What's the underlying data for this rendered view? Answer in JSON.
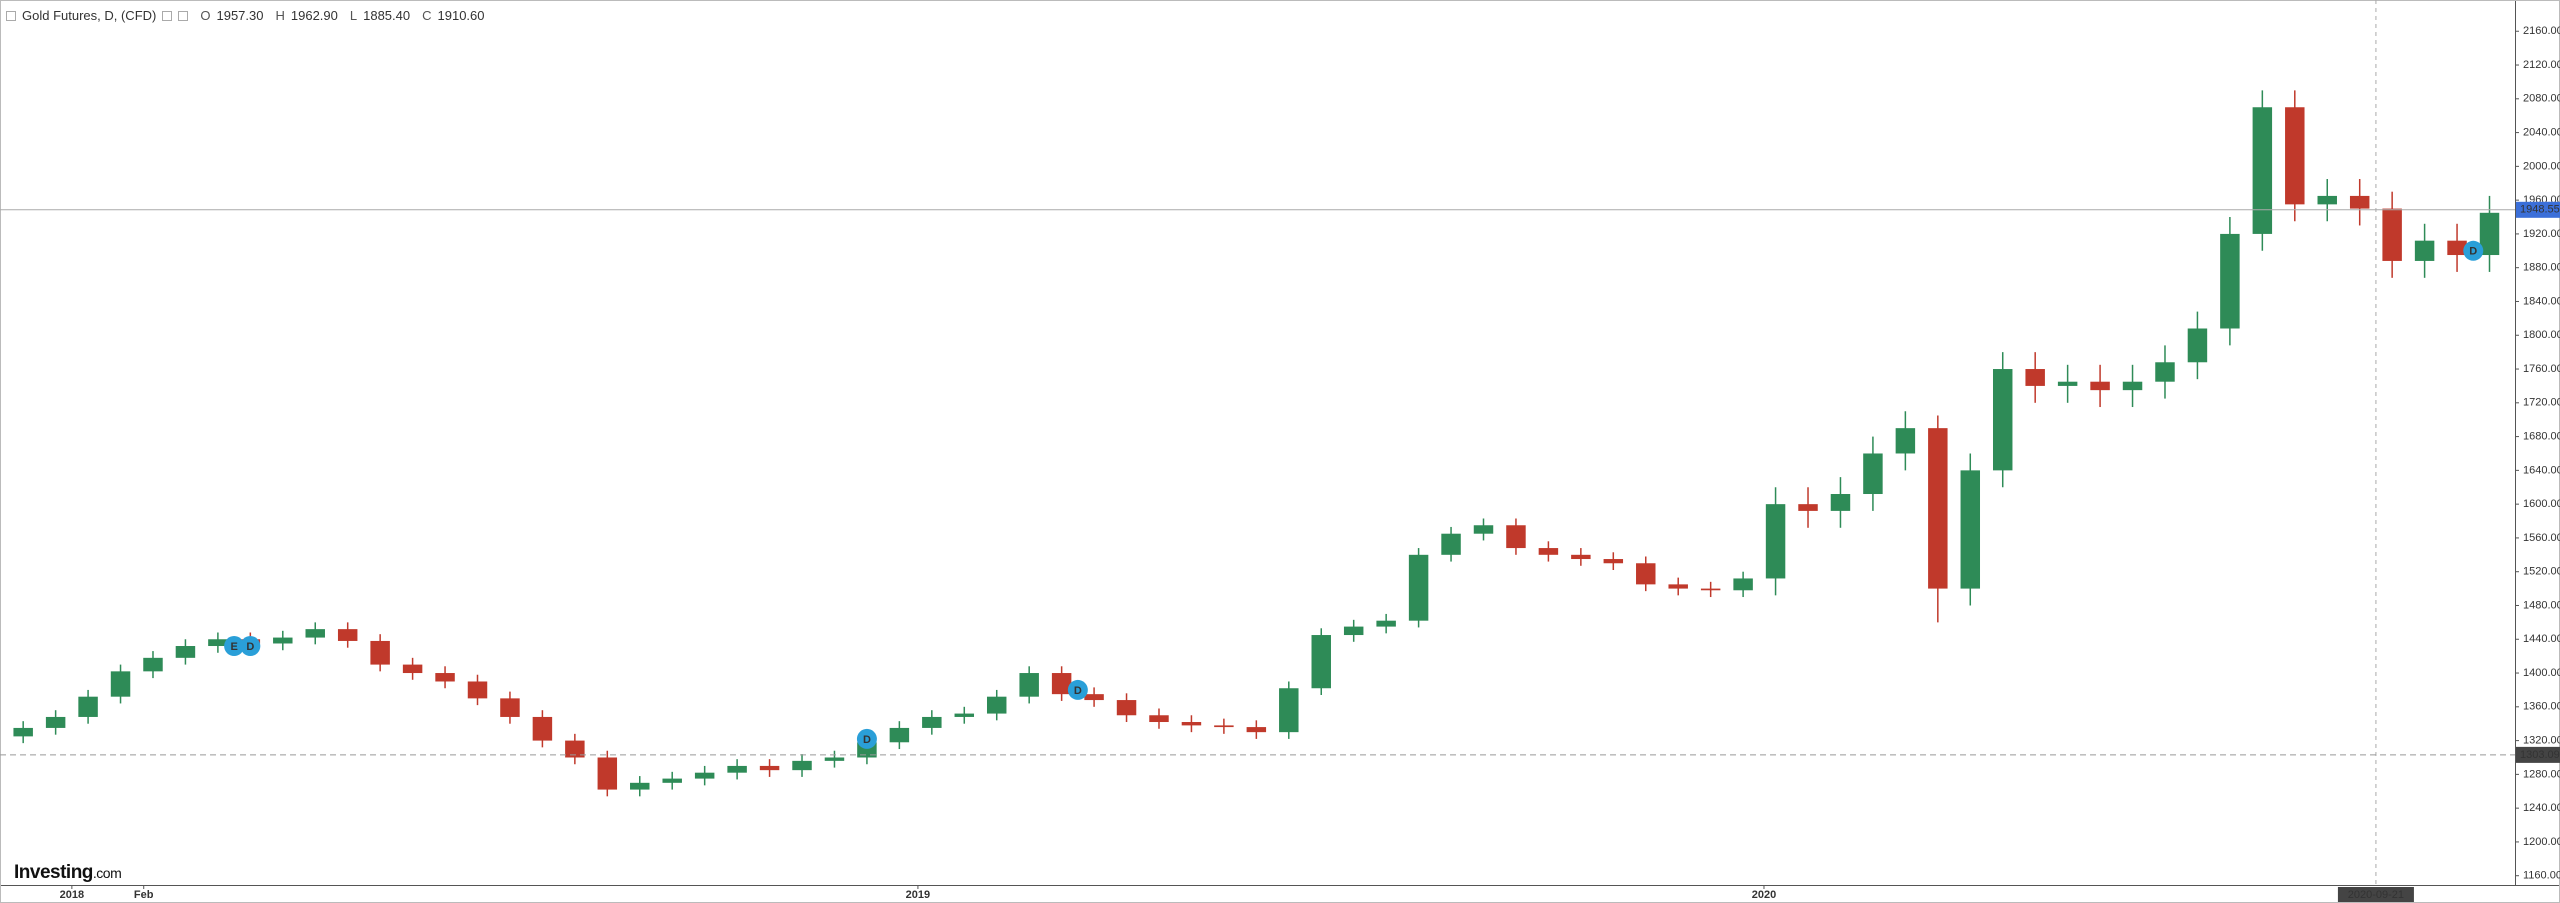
{
  "chart_data": {
    "type": "candlestick",
    "header": {
      "title": "Gold Futures, D, (CFD)",
      "ohlc": [
        {
          "label": "O",
          "value": "1957.30"
        },
        {
          "label": "H",
          "value": "1962.90"
        },
        {
          "label": "L",
          "value": "1885.40"
        },
        {
          "label": "C",
          "value": "1910.60"
        }
      ]
    },
    "x": [
      "2017-12-11",
      "2017-12-25",
      "2018-01-08",
      "2018-01-22",
      "2018-02-05",
      "2018-02-19",
      "2018-03-05",
      "2018-03-19",
      "2018-04-02",
      "2018-04-16",
      "2018-04-30",
      "2018-05-14",
      "2018-05-28",
      "2018-06-11",
      "2018-06-25",
      "2018-07-09",
      "2018-07-23",
      "2018-08-06",
      "2018-08-20",
      "2018-09-03",
      "2018-09-17",
      "2018-10-01",
      "2018-10-15",
      "2018-10-29",
      "2018-11-12",
      "2018-11-26",
      "2018-12-10",
      "2018-12-24",
      "2019-01-07",
      "2019-01-21",
      "2019-02-04",
      "2019-02-18",
      "2019-03-04",
      "2019-03-18",
      "2019-04-01",
      "2019-04-15",
      "2019-04-29",
      "2019-05-13",
      "2019-05-27",
      "2019-06-10",
      "2019-06-24",
      "2019-07-08",
      "2019-07-22",
      "2019-08-05",
      "2019-08-19",
      "2019-09-02",
      "2019-09-16",
      "2019-09-30",
      "2019-10-14",
      "2019-10-28",
      "2019-11-11",
      "2019-11-25",
      "2019-12-09",
      "2019-12-23",
      "2020-01-06",
      "2020-01-20",
      "2020-02-03",
      "2020-02-17",
      "2020-03-02",
      "2020-03-16",
      "2020-03-30",
      "2020-04-13",
      "2020-04-27",
      "2020-05-11",
      "2020-05-25",
      "2020-06-08",
      "2020-06-22",
      "2020-07-06",
      "2020-07-20",
      "2020-08-03",
      "2020-08-17",
      "2020-08-31",
      "2020-09-14",
      "2020-09-28",
      "2020-10-12",
      "2020-10-26",
      "2020-11-09"
    ],
    "open": [
      1325,
      1335,
      1348,
      1372,
      1402,
      1418,
      1432,
      1440,
      1435,
      1442,
      1452,
      1438,
      1410,
      1400,
      1390,
      1370,
      1348,
      1320,
      1300,
      1262,
      1270,
      1275,
      1282,
      1290,
      1285,
      1296,
      1300,
      1318,
      1335,
      1348,
      1352,
      1372,
      1400,
      1375,
      1368,
      1350,
      1342,
      1338,
      1336,
      1330,
      1382,
      1445,
      1455,
      1462,
      1540,
      1565,
      1575,
      1548,
      1540,
      1535,
      1530,
      1505,
      1500,
      1498,
      1512,
      1600,
      1592,
      1612,
      1660,
      1690,
      1500,
      1640,
      1760,
      1740,
      1745,
      1735,
      1745,
      1768,
      1808,
      1920,
      2070,
      1955,
      1965,
      1950,
      1888,
      1912,
      1895
    ],
    "high": [
      1343,
      1356,
      1380,
      1410,
      1426,
      1440,
      1448,
      1448,
      1450,
      1460,
      1460,
      1446,
      1418,
      1408,
      1398,
      1378,
      1356,
      1328,
      1308,
      1278,
      1283,
      1290,
      1298,
      1298,
      1304,
      1308,
      1326,
      1343,
      1356,
      1360,
      1380,
      1408,
      1408,
      1383,
      1376,
      1358,
      1350,
      1346,
      1344,
      1390,
      1453,
      1463,
      1470,
      1548,
      1573,
      1583,
      1583,
      1556,
      1548,
      1543,
      1538,
      1513,
      1508,
      1520,
      1620,
      1620,
      1632,
      1680,
      1710,
      1705,
      1660,
      1780,
      1780,
      1765,
      1765,
      1765,
      1788,
      1828,
      1940,
      2090,
      2090,
      1985,
      1985,
      1970,
      1932,
      1932,
      1965
    ],
    "low": [
      1317,
      1327,
      1340,
      1364,
      1394,
      1410,
      1424,
      1427,
      1427,
      1434,
      1430,
      1402,
      1392,
      1382,
      1362,
      1340,
      1312,
      1292,
      1254,
      1254,
      1262,
      1267,
      1274,
      1277,
      1277,
      1288,
      1292,
      1310,
      1327,
      1340,
      1344,
      1364,
      1367,
      1360,
      1342,
      1334,
      1330,
      1328,
      1322,
      1322,
      1374,
      1437,
      1447,
      1454,
      1532,
      1557,
      1540,
      1532,
      1527,
      1522,
      1497,
      1492,
      1490,
      1490,
      1492,
      1572,
      1572,
      1592,
      1640,
      1460,
      1480,
      1620,
      1720,
      1720,
      1715,
      1715,
      1725,
      1748,
      1788,
      1900,
      1935,
      1935,
      1930,
      1868,
      1868,
      1875,
      1875
    ],
    "close": [
      1335,
      1348,
      1372,
      1402,
      1418,
      1432,
      1440,
      1435,
      1442,
      1452,
      1438,
      1410,
      1400,
      1390,
      1370,
      1348,
      1320,
      1300,
      1262,
      1270,
      1275,
      1282,
      1290,
      1285,
      1296,
      1300,
      1318,
      1335,
      1348,
      1352,
      1372,
      1400,
      1375,
      1368,
      1350,
      1342,
      1338,
      1336,
      1330,
      1382,
      1445,
      1455,
      1462,
      1540,
      1565,
      1575,
      1548,
      1540,
      1535,
      1530,
      1505,
      1500,
      1498,
      1512,
      1600,
      1592,
      1612,
      1660,
      1690,
      1500,
      1640,
      1760,
      1740,
      1745,
      1735,
      1745,
      1768,
      1808,
      1920,
      2070,
      1955,
      1965,
      1950,
      1888,
      1912,
      1895,
      1945
    ],
    "up_color": "#2e8b57",
    "down_color": "#c0392b",
    "xlim": [
      "2017-12-01",
      "2020-11-20"
    ],
    "xticks": [
      {
        "value": "2018-01-01",
        "label": "2018"
      },
      {
        "value": "2018-02-01",
        "label": "Feb"
      },
      {
        "value": "2019-01-01",
        "label": "2019"
      },
      {
        "value": "2020-01-01",
        "label": "2020"
      }
    ],
    "ylim": [
      1149,
      2197
    ],
    "yticks": [
      {
        "value": 1160,
        "label": "1160.00"
      },
      {
        "value": 1200,
        "label": "1200.00"
      },
      {
        "value": 1240,
        "label": "1240.00"
      },
      {
        "value": 1280,
        "label": "1280.00"
      },
      {
        "value": 1320,
        "label": "1320.00"
      },
      {
        "value": 1360,
        "label": "1360.00"
      },
      {
        "value": 1400,
        "label": "1400.00"
      },
      {
        "value": 1440,
        "label": "1440.00"
      },
      {
        "value": 1480,
        "label": "1480.00"
      },
      {
        "value": 1520,
        "label": "1520.00"
      },
      {
        "value": 1560,
        "label": "1560.00"
      },
      {
        "value": 1600,
        "label": "1600.00"
      },
      {
        "value": 1640,
        "label": "1640.00"
      },
      {
        "value": 1680,
        "label": "1680.00"
      },
      {
        "value": 1720,
        "label": "1720.00"
      },
      {
        "value": 1760,
        "label": "1760.00"
      },
      {
        "value": 1800,
        "label": "1800.00"
      },
      {
        "value": 1840,
        "label": "1840.00"
      },
      {
        "value": 1880,
        "label": "1880.00"
      },
      {
        "value": 1920,
        "label": "1920.00"
      },
      {
        "value": 1960,
        "label": "1960.00"
      },
      {
        "value": 2000,
        "label": "2000.00"
      },
      {
        "value": 2040,
        "label": "2040.00"
      },
      {
        "value": 2080,
        "label": "2080.00"
      },
      {
        "value": 2120,
        "label": "2120.00"
      },
      {
        "value": 2160,
        "label": "2160.00"
      }
    ],
    "price_lines": [
      {
        "value": 1948.55,
        "color": "#3b6fd9",
        "style": "solid"
      },
      {
        "value": 1303.09,
        "color": "#444444",
        "style": "dashed"
      }
    ],
    "crosshair": {
      "x": "2020-09-21"
    },
    "events": [
      {
        "x": "2018-03-12",
        "price": 1432,
        "label": "E"
      },
      {
        "x": "2018-03-19",
        "price": 1432,
        "label": "D"
      },
      {
        "x": "2018-12-10",
        "price": 1322,
        "label": "D"
      },
      {
        "x": "2019-03-11",
        "price": 1380,
        "label": "D"
      },
      {
        "x": "2020-11-02",
        "price": 1900,
        "label": "D"
      }
    ],
    "brand": {
      "name": "Investing",
      "suffix": ".com"
    }
  }
}
